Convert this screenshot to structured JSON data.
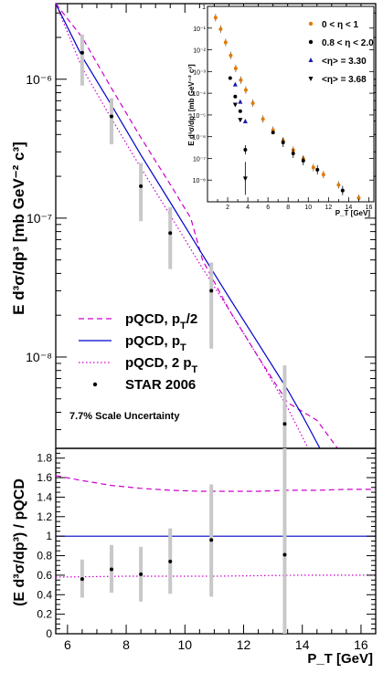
{
  "chart_data": [
    {
      "type": "line",
      "panel": "main",
      "ylabel": "E d³σ/dp³ [mb GeV⁻² c³]",
      "yscale": "log",
      "xlim": [
        5.6,
        16.5
      ],
      "ylim": [
        2.2e-09,
        3.5e-06
      ],
      "yticks": [
        {
          "value": 1e-08,
          "label": "10⁻⁸"
        },
        {
          "value": 1e-07,
          "label": "10⁻⁷"
        },
        {
          "value": 1e-06,
          "label": "10⁻⁶"
        }
      ],
      "series": [
        {
          "name": "pQCD, pT/2",
          "style": "dashed",
          "color": "#cc00cc",
          "x": [
            5.6,
            6.5,
            7.5,
            8.5,
            9.5,
            10.2,
            10.6,
            11.5,
            12.5,
            13.5,
            14.5,
            15.2
          ],
          "y": [
            4e-06,
            2e-06,
            8.6e-07,
            3.8e-07,
            1.75e-07,
            1e-07,
            5e-08,
            2.2e-08,
            1e-08,
            4.7e-09,
            3.5e-09,
            2.2e-09
          ]
        },
        {
          "name": "pQCD, pT",
          "style": "solid",
          "color": "#0000cc",
          "x": [
            5.6,
            6.5,
            7.5,
            8.5,
            9.5,
            10.5,
            11.5,
            12.5,
            13.5,
            14.0,
            14.6
          ],
          "y": [
            4e-06,
            1.45e-06,
            6.5e-07,
            2.85e-07,
            1.3e-07,
            5.9e-08,
            2.7e-08,
            1.25e-08,
            5.8e-09,
            3.8e-09,
            2.2e-09
          ]
        },
        {
          "name": "pQCD, 2 pT",
          "style": "dotted",
          "color": "#cc00cc",
          "x": [
            5.6,
            6.5,
            7.5,
            8.5,
            9.5,
            10.5,
            11.5,
            12.5,
            13.5,
            14.2
          ],
          "y": [
            4e-06,
            1.2e-06,
            5.2e-07,
            2.3e-07,
            1.05e-07,
            4.7e-08,
            2.2e-08,
            1e-08,
            4.3e-09,
            2.2e-09
          ]
        }
      ],
      "points": {
        "name": "STAR 2006",
        "x": [
          6.5,
          7.5,
          8.5,
          9.5,
          10.9,
          13.4
        ],
        "y": [
          1.55e-06,
          5.4e-07,
          1.7e-07,
          7.8e-08,
          3e-08,
          3.3e-09
        ],
        "ylow": [
          9e-07,
          3.4e-07,
          9.5e-08,
          4.3e-08,
          1.15e-08,
          1e-12
        ],
        "yhigh": [
          2.1e-06,
          7.3e-07,
          2.5e-07,
          1.2e-07,
          4.8e-08,
          8.7e-09
        ]
      },
      "note": "7.7% Scale Uncertainty"
    },
    {
      "type": "line",
      "panel": "ratio",
      "xlabel": "P_T [GeV]",
      "ylabel": "(E d³σ/dp³) / pQCD",
      "xlim": [
        5.6,
        16.5
      ],
      "ylim": [
        0,
        1.9
      ],
      "xticks": [
        6,
        8,
        10,
        12,
        14,
        16
      ],
      "yticks": [
        0,
        0.2,
        0.4,
        0.6,
        0.8,
        1,
        1.2,
        1.4,
        1.6,
        1.8
      ],
      "series": [
        {
          "style": "dashed",
          "color": "#cc00cc",
          "x": [
            5.6,
            6.5,
            7.5,
            8.5,
            9.5,
            10.5,
            11.5,
            12.5,
            13.5,
            14.5,
            15.5,
            16.5
          ],
          "y": [
            1.62,
            1.57,
            1.52,
            1.49,
            1.47,
            1.46,
            1.46,
            1.46,
            1.47,
            1.47,
            1.48,
            1.48
          ]
        },
        {
          "style": "solid",
          "color": "#0000cc",
          "x": [
            5.6,
            16.5
          ],
          "y": [
            1.0,
            1.0
          ]
        },
        {
          "style": "dotted",
          "color": "#cc00cc",
          "x": [
            5.6,
            8,
            11,
            14,
            16.5
          ],
          "y": [
            0.58,
            0.59,
            0.59,
            0.6,
            0.6
          ]
        }
      ],
      "points": {
        "x": [
          6.5,
          7.5,
          8.5,
          9.5,
          10.9,
          13.4
        ],
        "y": [
          0.56,
          0.66,
          0.61,
          0.74,
          0.96,
          0.81
        ],
        "ylow": [
          0.37,
          0.42,
          0.33,
          0.41,
          0.38,
          0.0
        ],
        "yhigh": [
          0.76,
          0.91,
          0.89,
          1.08,
          1.53,
          1.9
        ]
      }
    },
    {
      "type": "scatter",
      "panel": "inset",
      "xlabel": "P_T [GeV]",
      "ylabel": "E d³σ/dp³ [mb GeV⁻² c³]",
      "yscale": "log",
      "xlim": [
        0,
        16.5
      ],
      "ylim": [
        1e-09,
        1.0
      ],
      "xticks": [
        2,
        4,
        6,
        8,
        10,
        12,
        14,
        16
      ],
      "yticks": [
        {
          "value": 1e-08,
          "label": "10⁻⁸"
        },
        {
          "value": 1e-07,
          "label": "10⁻⁷"
        },
        {
          "value": 1e-06,
          "label": "10⁻⁶"
        },
        {
          "value": 1e-05,
          "label": "10⁻⁵"
        },
        {
          "value": 0.0001,
          "label": "10⁻⁴"
        },
        {
          "value": 0.001,
          "label": "10⁻³"
        },
        {
          "value": 0.01,
          "label": "10⁻²"
        },
        {
          "value": 0.1,
          "label": "10⁻¹"
        },
        {
          "value": 1,
          "label": "1"
        }
      ],
      "series": [
        {
          "name": "0 < η < 1",
          "marker": "circle",
          "color": "#e07b00",
          "x": [
            0.8,
            1.3,
            1.8,
            2.3,
            2.8,
            3.3,
            3.8,
            4.5,
            5.5,
            6.5,
            7.5,
            8.5,
            9.5,
            10.5,
            11.5,
            13,
            15
          ],
          "y": [
            0.3,
            0.09,
            0.022,
            0.0055,
            0.0014,
            0.0004,
            0.00014,
            3.5e-05,
            6.5e-06,
            2e-06,
            6.5e-07,
            2.4e-07,
            9.5e-08,
            3.8e-08,
            1.8e-08,
            6e-09,
            1.5e-09
          ]
        },
        {
          "name": "0.8 < η < 2.0",
          "marker": "circle",
          "color": "#000000",
          "x": [
            2.25,
            2.75,
            3.25,
            3.75,
            6.5,
            7.5,
            8.5,
            9.5,
            10.9,
            13.4
          ],
          "y": [
            0.0005,
            7e-05,
            1.5e-05,
            2.5e-07,
            1.55e-06,
            5.4e-07,
            1.7e-07,
            7.8e-08,
            3e-08,
            3.3e-09
          ]
        },
        {
          "name": "<η> = 3.30",
          "marker": "triangle-up",
          "color": "#1a1aaa",
          "x": [
            2.75,
            3.25,
            3.75
          ],
          "y": [
            0.00025,
            4e-05,
            5e-06
          ]
        },
        {
          "name": "<η> = 3.68",
          "marker": "triangle-down",
          "color": "#000000",
          "x": [
            2.75,
            3.25,
            3.75
          ],
          "y": [
            3e-05,
            6e-06,
            1.2e-08
          ]
        }
      ]
    }
  ]
}
